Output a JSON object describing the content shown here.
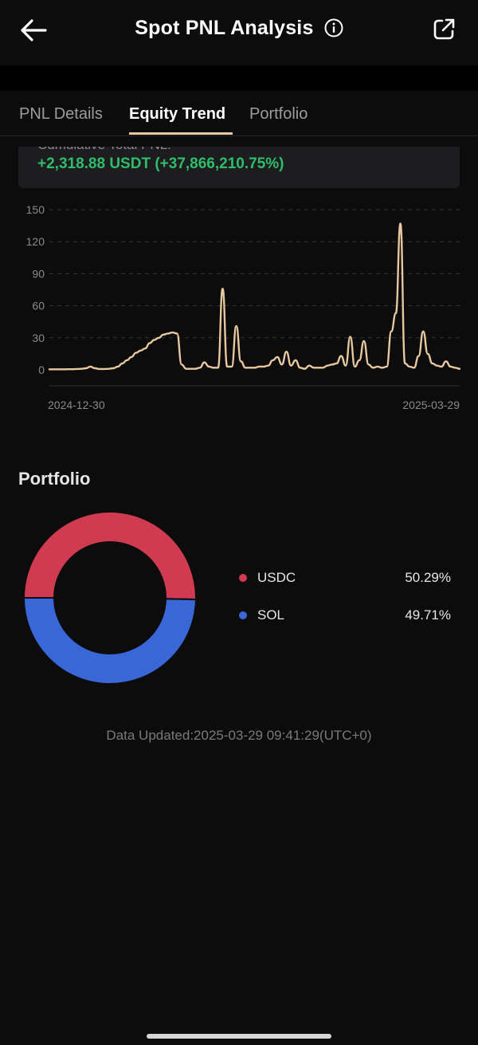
{
  "header": {
    "title": "Spot PNL Analysis"
  },
  "tabs": [
    {
      "label": "PNL Details"
    },
    {
      "label": "Equity Trend"
    },
    {
      "label": "Portfolio"
    }
  ],
  "summary": {
    "label": "Cumulative Total PNL:",
    "value": "+2,318.88 USDT (+37,866,210.75%)"
  },
  "colors": {
    "accent": "#e8c8a0",
    "positive": "#2fbd6c",
    "usdc": "#d03b52",
    "sol": "#3a67d8",
    "grid": "#333336"
  },
  "chart_data": {
    "type": "line",
    "x_start": "2024-12-30",
    "x_end": "2025-03-29",
    "x_tick_labels": [
      "2024-12-30",
      "2025-03-29"
    ],
    "y_ticks": [
      0,
      30,
      60,
      90,
      120,
      150
    ],
    "ylim": [
      0,
      150
    ],
    "grid": true,
    "values": [
      0.5,
      0.5,
      0.5,
      0.5,
      0.6,
      0.6,
      0.8,
      1,
      1.5,
      3,
      1.5,
      0.8,
      0.8,
      1,
      1.5,
      3,
      6,
      9,
      12,
      16,
      18,
      20,
      25,
      28,
      30,
      33,
      34,
      35,
      34,
      5,
      1,
      1,
      1,
      2,
      7,
      3,
      2,
      2,
      76,
      3,
      3,
      41,
      8,
      2,
      2,
      2,
      3,
      3,
      4,
      9,
      12,
      5,
      17,
      4,
      9,
      2,
      1,
      4,
      2,
      2,
      2,
      4,
      5,
      6,
      13,
      4,
      31,
      3,
      9,
      27,
      5,
      2,
      3,
      2,
      3,
      36,
      53,
      137,
      6,
      3,
      2,
      13,
      36,
      15,
      6,
      4,
      3,
      8,
      3,
      2,
      1
    ]
  },
  "portfolio": {
    "title": "Portfolio",
    "items": [
      {
        "name": "USDC",
        "percent": "50.29%",
        "value": 50.29
      },
      {
        "name": "SOL",
        "percent": "49.71%",
        "value": 49.71
      }
    ]
  },
  "footer": {
    "updated": "Data Updated:2025-03-29 09:41:29(UTC+0)"
  }
}
